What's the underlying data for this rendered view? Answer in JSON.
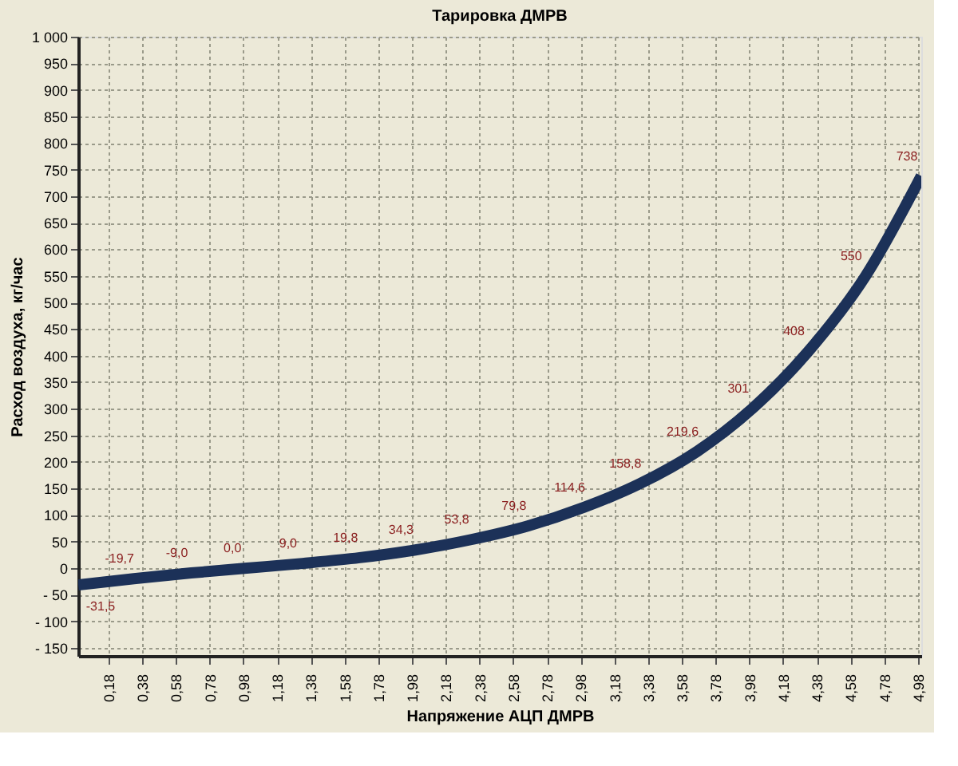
{
  "chart_data": {
    "type": "line",
    "title": "Тарировка ДМРВ",
    "xlabel": "Напряжение АЦП ДМРВ",
    "ylabel": "Расход воздуха, кг/час",
    "x": [
      0,
      0.33,
      0.67,
      1,
      1.33,
      1.67,
      2,
      2.33,
      2.67,
      3,
      3.33,
      3.67,
      4,
      4.33,
      4.67,
      5
    ],
    "series": [
      {
        "color": "#1c3158",
        "values": [
          -31.5,
          -19.7,
          -9.0,
          0.0,
          9.0,
          19.8,
          34.3,
          53.8,
          79.8,
          114.6,
          158.8,
          219.6,
          301,
          408,
          550,
          738
        ],
        "value_labels": [
          "-31,5",
          "-19,7",
          "-9,0",
          "0,0",
          "9,0",
          "19,8",
          "34,3",
          "53,8",
          "79,8",
          "114,6",
          "158,8",
          "219,6",
          "301",
          "408",
          "550",
          "738"
        ]
      }
    ],
    "xlim": [
      0,
      5
    ],
    "ylim": [
      -165,
      1000
    ],
    "xticks": [
      {
        "value": 0.18,
        "label": "0,18"
      },
      {
        "value": 0.38,
        "label": "0,38"
      },
      {
        "value": 0.58,
        "label": "0,58"
      },
      {
        "value": 0.78,
        "label": "0,78"
      },
      {
        "value": 0.98,
        "label": "0,98"
      },
      {
        "value": 1.18,
        "label": "1,18"
      },
      {
        "value": 1.38,
        "label": "1,38"
      },
      {
        "value": 1.58,
        "label": "1,58"
      },
      {
        "value": 1.78,
        "label": "1,78"
      },
      {
        "value": 1.98,
        "label": "1,98"
      },
      {
        "value": 2.18,
        "label": "2,18"
      },
      {
        "value": 2.38,
        "label": "2,38"
      },
      {
        "value": 2.58,
        "label": "2,58"
      },
      {
        "value": 2.78,
        "label": "2,78"
      },
      {
        "value": 2.98,
        "label": "2,98"
      },
      {
        "value": 3.18,
        "label": "3,18"
      },
      {
        "value": 3.38,
        "label": "3,38"
      },
      {
        "value": 3.58,
        "label": "3,58"
      },
      {
        "value": 3.78,
        "label": "3,78"
      },
      {
        "value": 3.98,
        "label": "3,98"
      },
      {
        "value": 4.18,
        "label": "4,18"
      },
      {
        "value": 4.38,
        "label": "4,38"
      },
      {
        "value": 4.58,
        "label": "4,58"
      },
      {
        "value": 4.78,
        "label": "4,78"
      },
      {
        "value": 4.98,
        "label": "4,98"
      }
    ],
    "yticks": [
      {
        "value": -150,
        "label": "- 150"
      },
      {
        "value": -100,
        "label": "- 100"
      },
      {
        "value": -50,
        "label": "- 50"
      },
      0,
      50,
      100,
      150,
      200,
      250,
      300,
      350,
      400,
      450,
      500,
      550,
      600,
      650,
      700,
      750,
      800,
      850,
      900,
      950,
      {
        "value": 1000,
        "label": "1 000"
      }
    ],
    "grid": true,
    "line_style": "solid",
    "marker": "none"
  }
}
